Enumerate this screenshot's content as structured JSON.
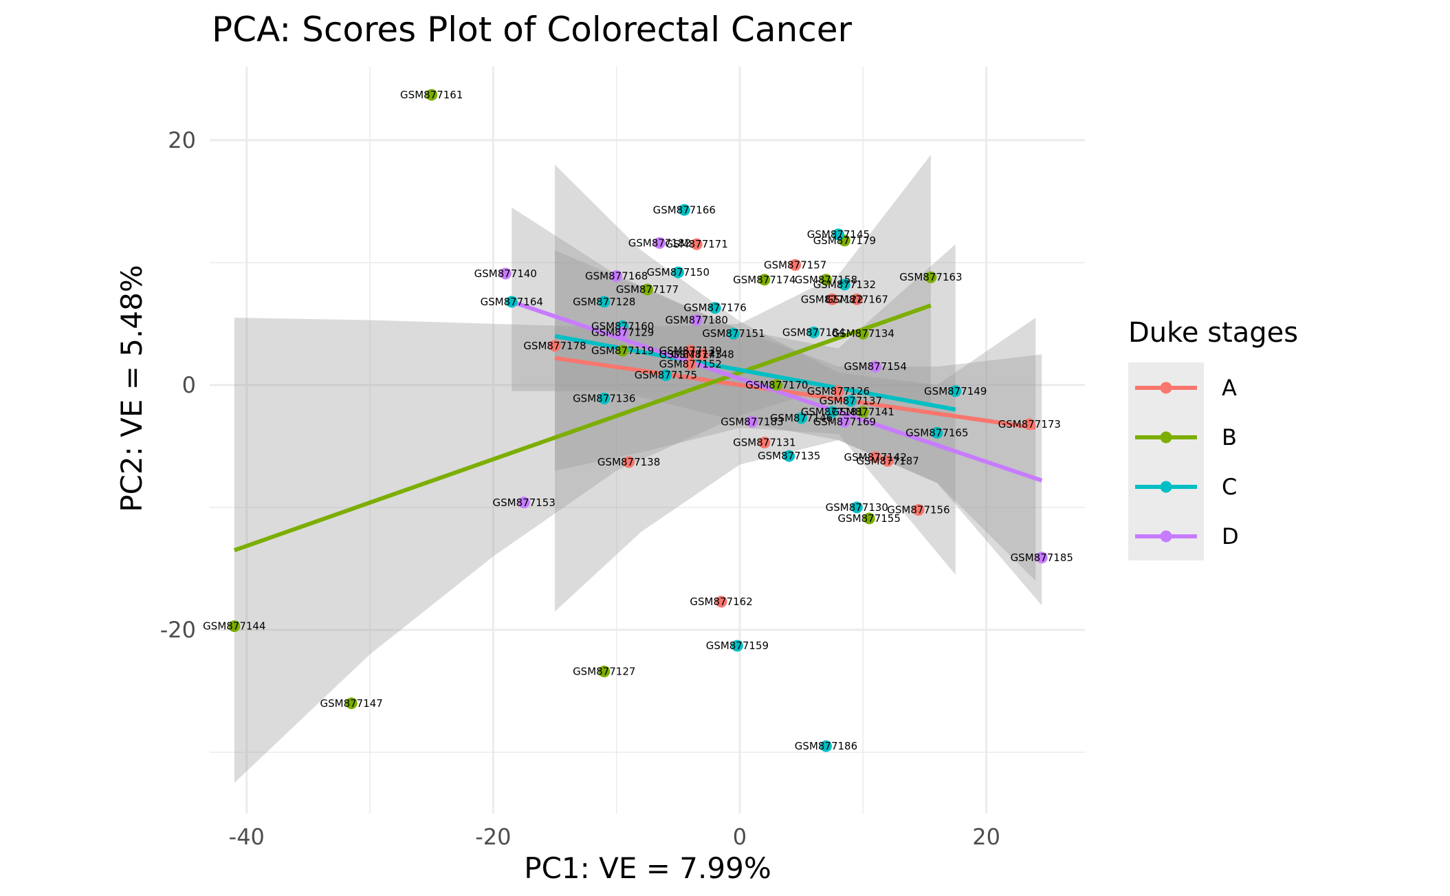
{
  "chart_data": {
    "type": "scatter",
    "title": "PCA: Scores Plot of Colorectal Cancer",
    "xlabel": "PC1: VE = 7.99%",
    "ylabel": "PC2: VE = 5.48%",
    "xlim": [
      -43,
      28
    ],
    "ylim": [
      -35,
      26
    ],
    "x_ticks": [
      -40,
      -20,
      0,
      20
    ],
    "y_ticks": [
      -20,
      0,
      20
    ],
    "grid": true,
    "legend": {
      "title": "Duke stages",
      "position": "right"
    },
    "series": [
      {
        "name": "A",
        "color": "#F8766D",
        "trend": {
          "x": [
            -15,
            24
          ],
          "y": [
            2.2,
            -3.5
          ]
        },
        "band": {
          "x": [
            -15,
            -8,
            0,
            8,
            16,
            24
          ],
          "lower": [
            -18.5,
            -12,
            -6.5,
            -4.5,
            -8,
            -16
          ],
          "upper": [
            18,
            11,
            5.2,
            1,
            0,
            5.5
          ]
        },
        "points": [
          {
            "label": "GSM877178",
            "x": -15,
            "y": 3.2
          },
          {
            "label": "GSM877171",
            "x": -3.5,
            "y": 11.5
          },
          {
            "label": "GSM877157",
            "x": 4.5,
            "y": 9.8
          },
          {
            "label": "GSM877122",
            "x": 7.5,
            "y": 7
          },
          {
            "label": "GSM877167",
            "x": 9.5,
            "y": 7
          },
          {
            "label": "GSM877139",
            "x": -4,
            "y": 2.8
          },
          {
            "label": "GSM877143",
            "x": -4,
            "y": 2.5
          },
          {
            "label": "GSM877148",
            "x": -3,
            "y": 2.5
          },
          {
            "label": "GSM877152",
            "x": -4,
            "y": 1.7
          },
          {
            "label": "GSM877126",
            "x": 8,
            "y": -0.5
          },
          {
            "label": "GSM877173",
            "x": 23.5,
            "y": -3.2
          },
          {
            "label": "GSM877131",
            "x": 2,
            "y": -4.7
          },
          {
            "label": "GSM877138",
            "x": -9,
            "y": -6.3
          },
          {
            "label": "GSM877142",
            "x": 11,
            "y": -5.9
          },
          {
            "label": "GSM877187",
            "x": 12,
            "y": -6.2
          },
          {
            "label": "GSM877156",
            "x": 14.5,
            "y": -10.2
          },
          {
            "label": "GSM877162",
            "x": -1.5,
            "y": -17.7
          }
        ]
      },
      {
        "name": "B",
        "color": "#7CAE00",
        "trend": {
          "x": [
            -41,
            15.5
          ],
          "y": [
            -13.5,
            6.5
          ]
        },
        "band": {
          "x": [
            -41,
            -30,
            -20,
            -10,
            0,
            8,
            15.5
          ],
          "lower": [
            -32.5,
            -22,
            -14,
            -7,
            -2.5,
            0,
            -1.5
          ],
          "upper": [
            5.5,
            5.3,
            5,
            4.7,
            5,
            9,
            18.8
          ]
        },
        "points": [
          {
            "label": "GSM877161",
            "x": -25,
            "y": 23.7
          },
          {
            "label": "GSM877179",
            "x": 8.5,
            "y": 11.8
          },
          {
            "label": "GSM877163",
            "x": 15.5,
            "y": 8.8
          },
          {
            "label": "GSM877174",
            "x": 2,
            "y": 8.6
          },
          {
            "label": "GSM877158",
            "x": 7,
            "y": 8.6
          },
          {
            "label": "GSM877177",
            "x": -7.5,
            "y": 7.8
          },
          {
            "label": "GSM877134",
            "x": 10,
            "y": 4.2
          },
          {
            "label": "GSM877119",
            "x": -9.5,
            "y": 2.8
          },
          {
            "label": "GSM877170",
            "x": 3,
            "y": 0
          },
          {
            "label": "GSM877141",
            "x": 10,
            "y": -2.2
          },
          {
            "label": "GSM877155",
            "x": 10.5,
            "y": -10.9
          },
          {
            "label": "GSM877144",
            "x": -41,
            "y": -19.7
          },
          {
            "label": "GSM877127",
            "x": -11,
            "y": -23.4
          },
          {
            "label": "GSM877147",
            "x": -31.5,
            "y": -26
          }
        ]
      },
      {
        "name": "C",
        "color": "#00BFC4",
        "trend": {
          "x": [
            -15,
            17.5
          ],
          "y": [
            4,
            -2
          ]
        },
        "band": {
          "x": [
            -15,
            -8,
            0,
            8,
            17.5
          ],
          "lower": [
            -7,
            -5.5,
            -3.5,
            -4,
            -15.5
          ],
          "upper": [
            11,
            8,
            4.5,
            3,
            11.5
          ]
        },
        "points": [
          {
            "label": "GSM877166",
            "x": -4.5,
            "y": 14.3
          },
          {
            "label": "GSM877145",
            "x": 8,
            "y": 12.3
          },
          {
            "label": "GSM877150",
            "x": -5,
            "y": 9.2
          },
          {
            "label": "GSM877132",
            "x": 8.5,
            "y": 8.2
          },
          {
            "label": "GSM877164",
            "x": -18.5,
            "y": 6.8
          },
          {
            "label": "GSM877128",
            "x": -11,
            "y": 6.8
          },
          {
            "label": "GSM877176",
            "x": -2,
            "y": 6.3
          },
          {
            "label": "GSM877160",
            "x": -9.5,
            "y": 4.8
          },
          {
            "label": "GSM877151",
            "x": -0.5,
            "y": 4.2
          },
          {
            "label": "GSM877184",
            "x": 6,
            "y": 4.3
          },
          {
            "label": "GSM877175",
            "x": -6,
            "y": 0.8
          },
          {
            "label": "GSM877149",
            "x": 17.5,
            "y": -0.5
          },
          {
            "label": "GSM877136",
            "x": -11,
            "y": -1.1
          },
          {
            "label": "GSM877137",
            "x": 9,
            "y": -1.3
          },
          {
            "label": "GSM877181",
            "x": 7.5,
            "y": -2.2
          },
          {
            "label": "GSM877146",
            "x": 5,
            "y": -2.7
          },
          {
            "label": "GSM877165",
            "x": 16,
            "y": -3.9
          },
          {
            "label": "GSM877135",
            "x": 4,
            "y": -5.8
          },
          {
            "label": "GSM877130",
            "x": 9.5,
            "y": -10
          },
          {
            "label": "GSM877159",
            "x": -0.2,
            "y": -21.3
          },
          {
            "label": "GSM877186",
            "x": 7,
            "y": -29.5
          }
        ]
      },
      {
        "name": "D",
        "color": "#C77CFF",
        "trend": {
          "x": [
            -18.5,
            24.5
          ],
          "y": [
            6.8,
            -7.8
          ]
        },
        "band": {
          "x": [
            -18.5,
            -10,
            0,
            8,
            16,
            24.5
          ],
          "lower": [
            -0.5,
            -0.5,
            -3,
            -4.5,
            -8,
            -18
          ],
          "upper": [
            14.5,
            9,
            4.5,
            1.5,
            1.5,
            2.5
          ]
        },
        "points": [
          {
            "label": "GSM877182",
            "x": -6.5,
            "y": 11.6
          },
          {
            "label": "GSM877140",
            "x": -19,
            "y": 9.1
          },
          {
            "label": "GSM877168",
            "x": -10,
            "y": 8.9
          },
          {
            "label": "GSM877180",
            "x": -3.5,
            "y": 5.3
          },
          {
            "label": "GSM877129",
            "x": -9.5,
            "y": 4.3
          },
          {
            "label": "GSM877154",
            "x": 11,
            "y": 1.5
          },
          {
            "label": "GSM877183",
            "x": 1,
            "y": -3
          },
          {
            "label": "GSM877169",
            "x": 8.5,
            "y": -3
          },
          {
            "label": "GSM877153",
            "x": -17.5,
            "y": -9.6
          },
          {
            "label": "GSM877185",
            "x": 24.5,
            "y": -14.1
          }
        ]
      }
    ]
  }
}
